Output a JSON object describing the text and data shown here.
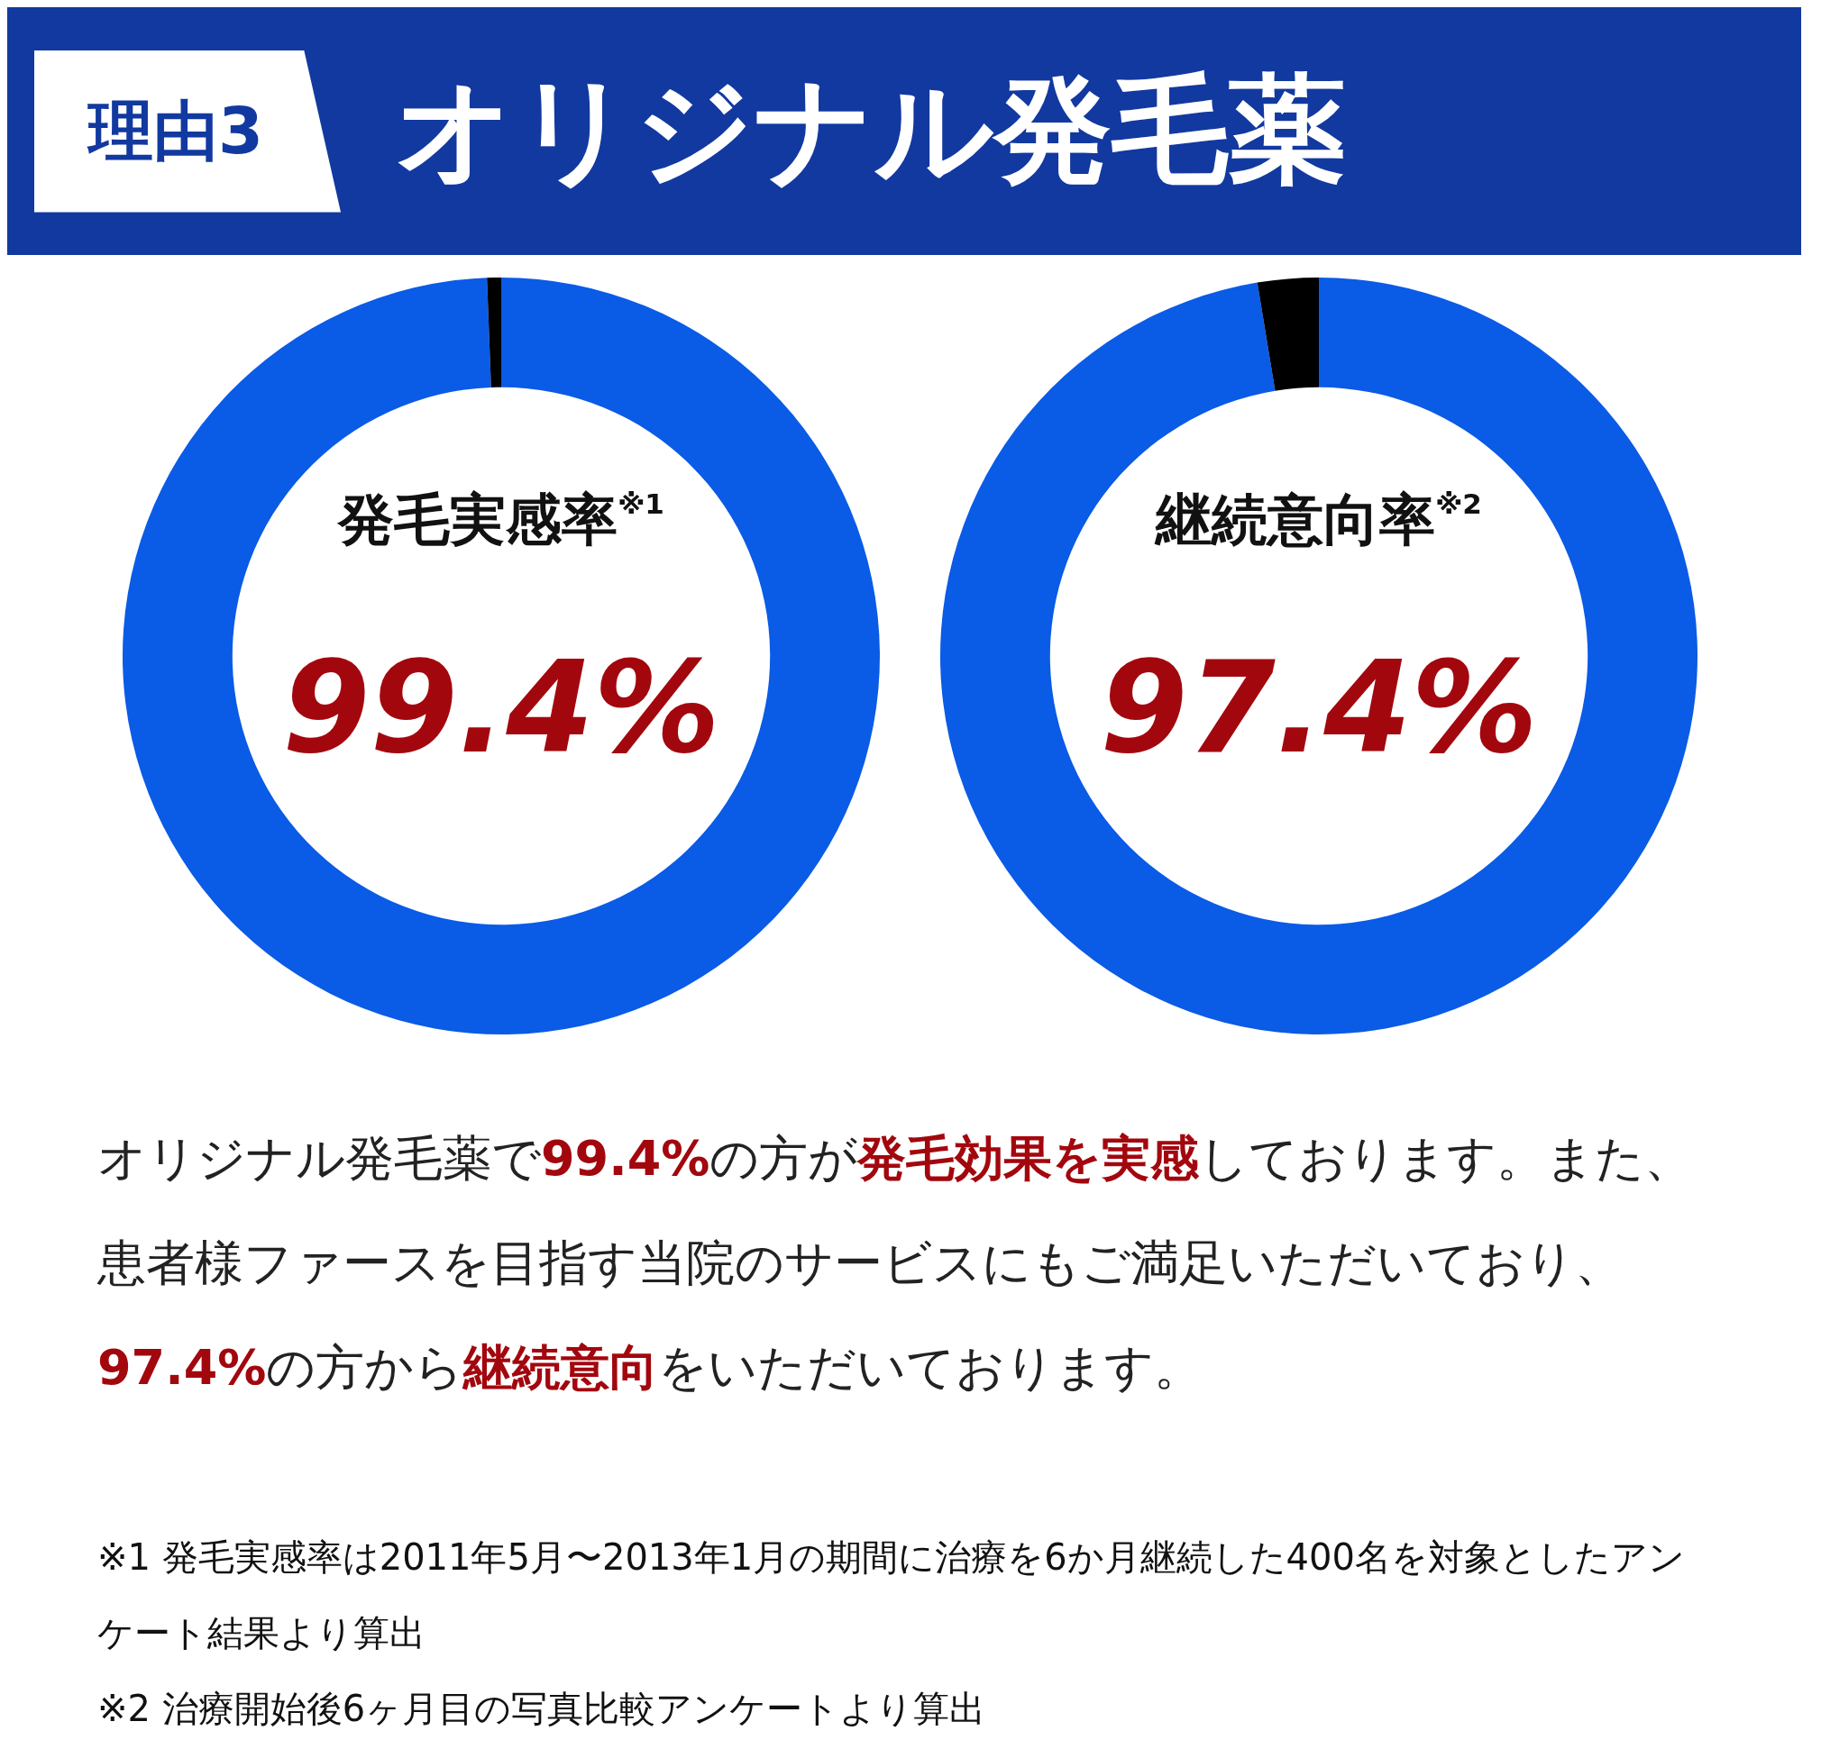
{
  "chart_data": [
    {
      "type": "donut",
      "title": "発毛実感率$^{※1}$",
      "categories": [
        null,
        null
      ],
      "values": [
        99.4,
        0.6
      ],
      "colors": [
        "#0a5be6",
        "#000000"
      ],
      "value_labels": [
        "99.4%",
        null
      ],
      "legend": false,
      "annotations": [
        "※1 発毛実感率は2011年5月〜2013年1月の期間に治療を6か月継続した400名を対象としたアンケート結果より算出"
      ]
    },
    {
      "type": "donut",
      "title": "継続意向率$^{※2}$",
      "categories": [
        null,
        null
      ],
      "values": [
        97.4,
        2.6
      ],
      "colors": [
        "#0a5be6",
        "#000000"
      ],
      "value_labels": [
        "97.4%",
        null
      ],
      "legend": false,
      "annotations": [
        "※2 治療開始後6ヶ月目の写真比較アンケートより算出"
      ]
    },
    {
      "type": "other",
      "title": "オリジナル発毛薬",
      "subtitle": "理由3",
      "annotations": [
        "オリジナル発毛薬で",
        "99.4%",
        "の方が",
        "発毛効果を実感",
        "しております。また、患者様ファースを目指す当院のサービスにもご満足いただいており、",
        "97.4%",
        "の方から",
        "継続意向",
        "をいただいております。"
      ]
    }
  ]
}
